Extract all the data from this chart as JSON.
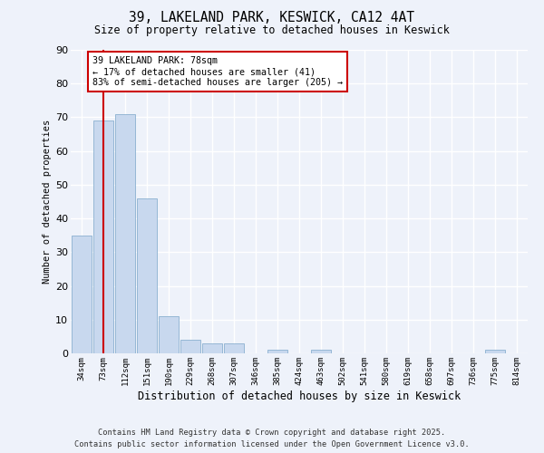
{
  "title1": "39, LAKELAND PARK, KESWICK, CA12 4AT",
  "title2": "Size of property relative to detached houses in Keswick",
  "xlabel": "Distribution of detached houses by size in Keswick",
  "ylabel": "Number of detached properties",
  "bar_labels": [
    "34sqm",
    "73sqm",
    "112sqm",
    "151sqm",
    "190sqm",
    "229sqm",
    "268sqm",
    "307sqm",
    "346sqm",
    "385sqm",
    "424sqm",
    "463sqm",
    "502sqm",
    "541sqm",
    "580sqm",
    "619sqm",
    "658sqm",
    "697sqm",
    "736sqm",
    "775sqm",
    "814sqm"
  ],
  "bar_values": [
    35,
    69,
    71,
    46,
    11,
    4,
    3,
    3,
    0,
    1,
    0,
    1,
    0,
    0,
    0,
    0,
    0,
    0,
    0,
    1,
    0
  ],
  "bar_color": "#c8d8ee",
  "bar_edge_color": "#8ab0d0",
  "vline_x_index": 1,
  "vline_color": "#cc0000",
  "annotation_title": "39 LAKELAND PARK: 78sqm",
  "annotation_line1": "← 17% of detached houses are smaller (41)",
  "annotation_line2": "83% of semi-detached houses are larger (205) →",
  "annotation_box_facecolor": "#ffffff",
  "annotation_box_edgecolor": "#cc0000",
  "ylim": [
    0,
    90
  ],
  "yticks": [
    0,
    10,
    20,
    30,
    40,
    50,
    60,
    70,
    80,
    90
  ],
  "footer1": "Contains HM Land Registry data © Crown copyright and database right 2025.",
  "footer2": "Contains public sector information licensed under the Open Government Licence v3.0.",
  "bg_color": "#eef2fa",
  "grid_color": "#ffffff"
}
